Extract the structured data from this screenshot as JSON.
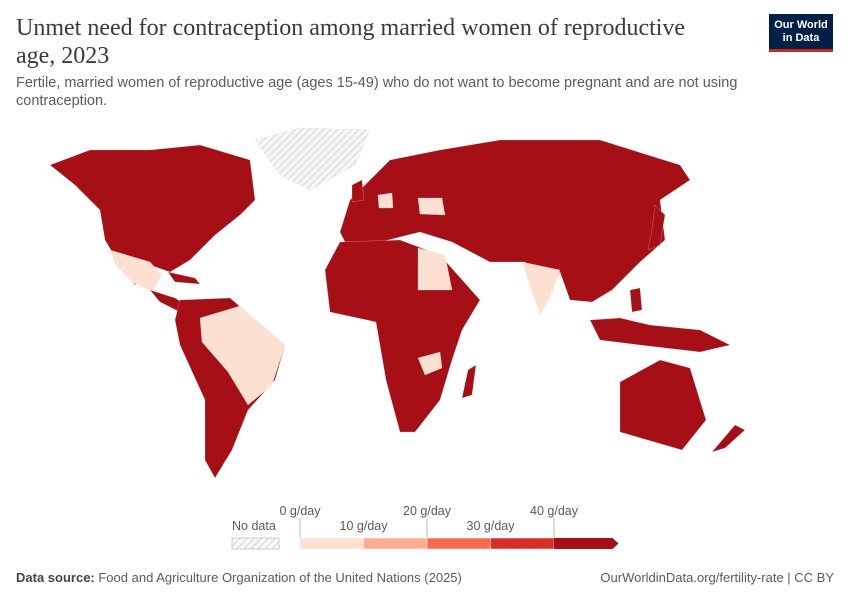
{
  "header": {
    "title": "Unmet need for contraception among married women of reproductive age, 2023",
    "subtitle": "Fertile, married women of reproductive age (ages 15-49) who do not want to become pregnant and are not using contraception.",
    "logo": "Our World in Data"
  },
  "legend": {
    "no_data_label": "No data",
    "bins": [
      {
        "label": "0 g/day",
        "color": "#fee0d2"
      },
      {
        "label": "10 g/day",
        "color": "#fcab8f"
      },
      {
        "label": "20 g/day",
        "color": "#f96a4c"
      },
      {
        "label": "30 g/day",
        "color": "#dc2a25"
      },
      {
        "label": "40 g/day",
        "color": "#a50f15"
      }
    ]
  },
  "map": {
    "default_color": "#a50f15",
    "light_color": "#fde0d2",
    "no_data_pattern": "hatched-grey"
  },
  "footer": {
    "source_label": "Data source:",
    "source_text": " Food and Agriculture Organization of the United Nations (2025)",
    "url": "OurWorldinData.org/fertility-rate | CC BY"
  }
}
